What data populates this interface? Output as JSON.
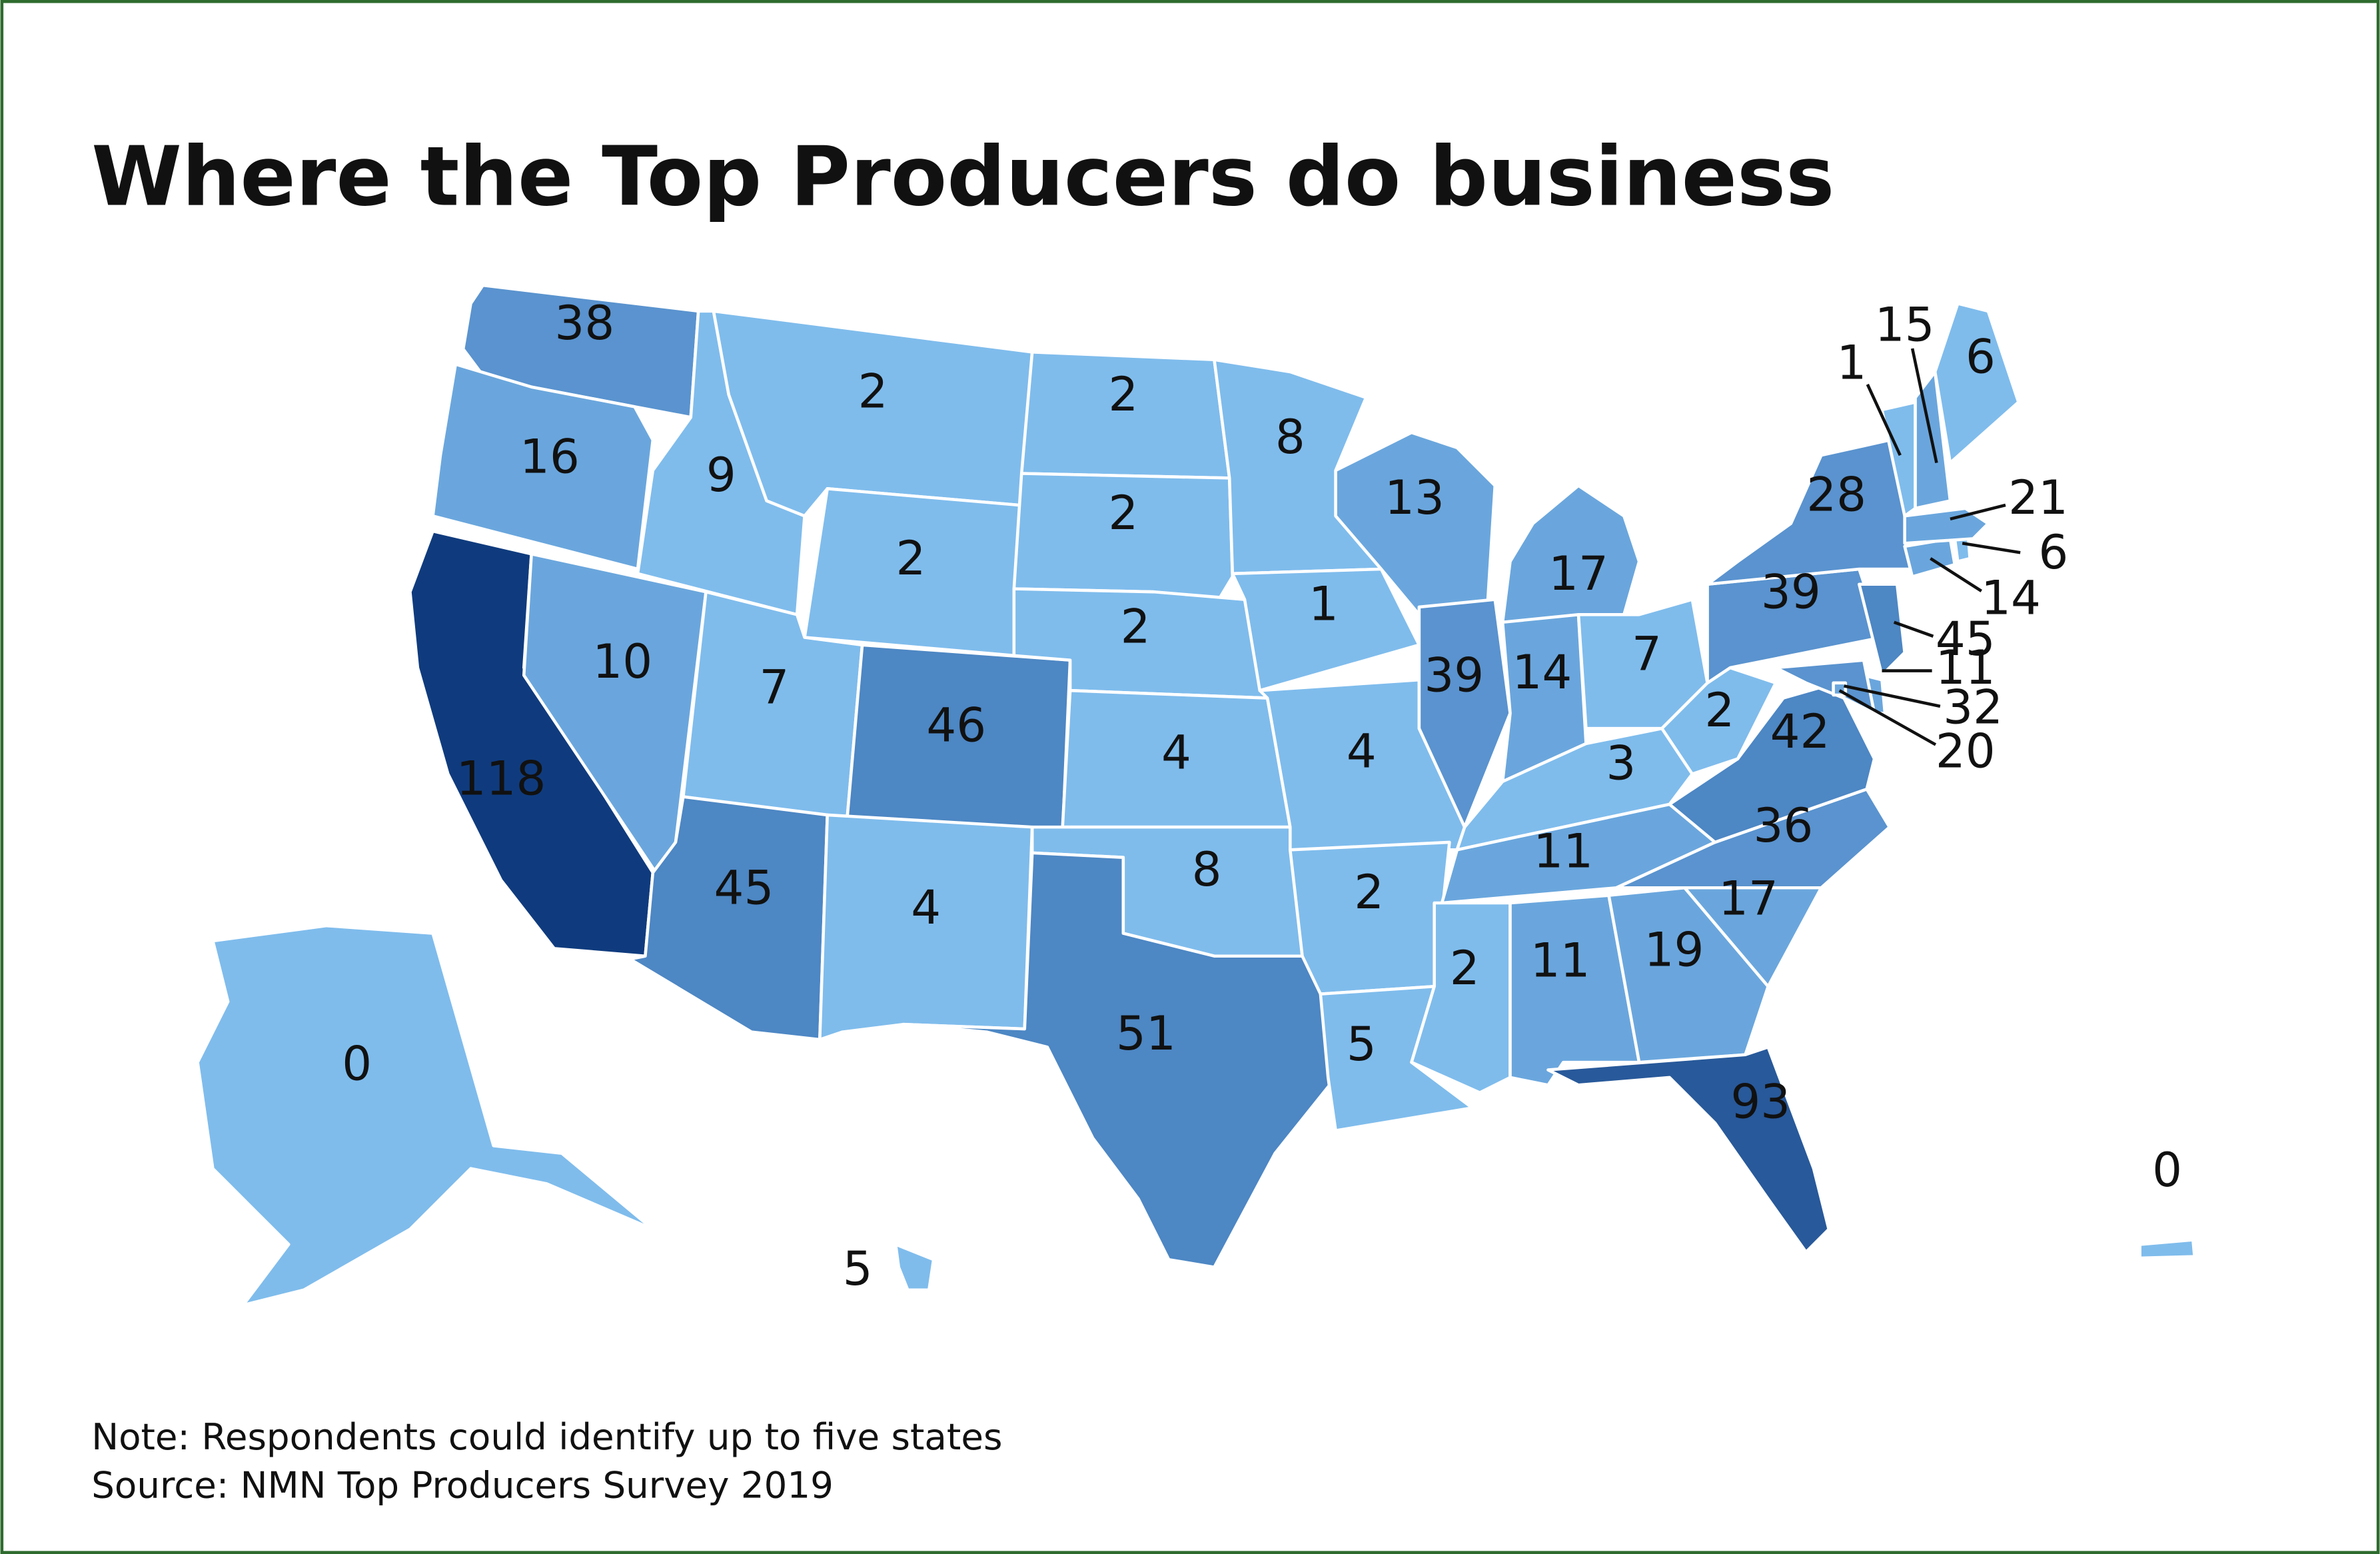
{
  "header": {
    "title": "Where the Top Producers do business"
  },
  "map": {
    "regions": [
      {
        "value": 38,
        "color": "#5a93cf"
      },
      {
        "value": 16,
        "color": "#6aa6dd"
      },
      {
        "value": 118,
        "color": "#0f3b7e"
      },
      {
        "value": 10,
        "color": "#6aa6dd"
      },
      {
        "value": 9,
        "color": "#7fbcec"
      },
      {
        "value": 2,
        "color": "#7fbcec"
      },
      {
        "value": 2,
        "color": "#7fbcec"
      },
      {
        "value": 7,
        "color": "#7fbcec"
      },
      {
        "value": 46,
        "color": "#4d87c4"
      },
      {
        "value": 45,
        "color": "#4d87c4"
      },
      {
        "value": 4,
        "color": "#7fbcec"
      },
      {
        "value": 2,
        "color": "#7fbcec"
      },
      {
        "value": 2,
        "color": "#7fbcec"
      },
      {
        "value": 2,
        "color": "#7fbcec"
      },
      {
        "value": 4,
        "color": "#7fbcec"
      },
      {
        "value": 8,
        "color": "#7fbcec"
      },
      {
        "value": 51,
        "color": "#4d87c4"
      },
      {
        "value": 8,
        "color": "#7fbcec"
      },
      {
        "value": 1,
        "color": "#7fbcec"
      },
      {
        "value": 4,
        "color": "#7fbcec"
      },
      {
        "value": 2,
        "color": "#7fbcec"
      },
      {
        "value": 5,
        "color": "#7fbcec"
      },
      {
        "value": 13,
        "color": "#6aa6dd"
      },
      {
        "value": 39,
        "color": "#5a93cf"
      },
      {
        "value": 17,
        "color": "#6aa6dd"
      },
      {
        "value": 14,
        "color": "#6aa6dd"
      },
      {
        "value": 7,
        "color": "#7fbcec"
      },
      {
        "value": 3,
        "color": "#7fbcec"
      },
      {
        "value": 11,
        "color": "#6aa6dd"
      },
      {
        "value": 2,
        "color": "#7fbcec"
      },
      {
        "value": 11,
        "color": "#6aa6dd"
      },
      {
        "value": 19,
        "color": "#6aa6dd"
      },
      {
        "value": 93,
        "color": "#28599a"
      },
      {
        "value": 17,
        "color": "#6aa6dd"
      },
      {
        "value": 36,
        "color": "#5a93cf"
      },
      {
        "value": 42,
        "color": "#4d87c4"
      },
      {
        "value": 2,
        "color": "#7fbcec"
      },
      {
        "value": 39,
        "color": "#5a93cf"
      },
      {
        "value": 28,
        "color": "#5a93cf"
      },
      {
        "value": 45,
        "color": "#4d87c4"
      },
      {
        "value": 11,
        "color": "#6aa6dd"
      },
      {
        "value": 32,
        "color": "#5a93cf"
      },
      {
        "value": 20,
        "color": "#6aa6dd"
      },
      {
        "value": 14,
        "color": "#6aa6dd"
      },
      {
        "value": 6,
        "color": "#7fbcec"
      },
      {
        "value": 21,
        "color": "#6aa6dd"
      },
      {
        "value": 1,
        "color": "#7fbcec"
      },
      {
        "value": 15,
        "color": "#6aa6dd"
      },
      {
        "value": 6,
        "color": "#7fbcec"
      },
      {
        "value": 0,
        "color": "#7fbcec"
      },
      {
        "value": 5,
        "color": "#7fbcec"
      },
      {
        "value": 0,
        "color": "#7fbcec"
      }
    ]
  },
  "footer": {
    "note": "Note: Respondents could identify up to five states",
    "source": "Source: NMN Top Producers Survey 2019"
  }
}
